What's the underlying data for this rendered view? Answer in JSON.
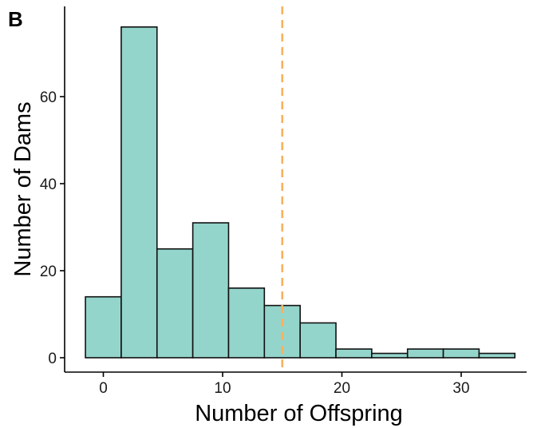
{
  "panel_label": "B",
  "chart_data": {
    "type": "bar",
    "subtype": "histogram",
    "xlabel": "Number of Offspring",
    "ylabel": "Number of Dams",
    "xlim": [
      -2.5,
      35.5
    ],
    "ylim": [
      0,
      79
    ],
    "x_ticks": [
      0,
      10,
      20,
      30
    ],
    "x_tick_labels": [
      "0",
      "10",
      "20",
      "30"
    ],
    "y_ticks": [
      0,
      20,
      40,
      60
    ],
    "y_tick_labels": [
      "0",
      "20",
      "40",
      "60"
    ],
    "bin_width": 3,
    "bins": [
      {
        "x0": -1.5,
        "x1": 1.5,
        "count": 14
      },
      {
        "x0": 1.5,
        "x1": 4.5,
        "count": 76
      },
      {
        "x0": 4.5,
        "x1": 7.5,
        "count": 25
      },
      {
        "x0": 7.5,
        "x1": 10.5,
        "count": 31
      },
      {
        "x0": 10.5,
        "x1": 13.5,
        "count": 16
      },
      {
        "x0": 13.5,
        "x1": 16.5,
        "count": 12
      },
      {
        "x0": 16.5,
        "x1": 19.5,
        "count": 8
      },
      {
        "x0": 19.5,
        "x1": 22.5,
        "count": 2
      },
      {
        "x0": 22.5,
        "x1": 25.5,
        "count": 1
      },
      {
        "x0": 25.5,
        "x1": 28.5,
        "count": 2
      },
      {
        "x0": 28.5,
        "x1": 31.5,
        "count": 2
      },
      {
        "x0": 31.5,
        "x1": 34.5,
        "count": 1
      }
    ],
    "reference_line": {
      "x": 15,
      "style": "dashed",
      "color": "#f7b15f"
    },
    "bar_color": "#94d5cb",
    "grid": false,
    "legend": "none"
  }
}
